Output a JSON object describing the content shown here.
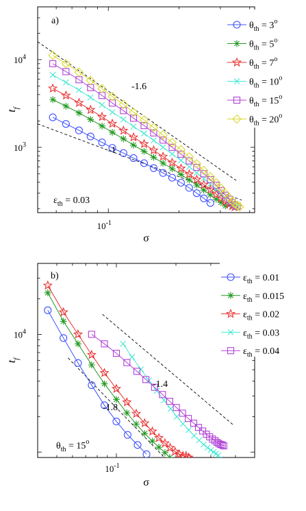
{
  "chart_data": [
    {
      "type": "line",
      "panel_label": "a)",
      "xscale": "log",
      "yscale": "log",
      "xlim": [
        0.05,
        0.42
      ],
      "ylim": [
        180,
        40000
      ],
      "xlabel": "σ",
      "ylabel": "t_f",
      "x_ticks": [
        {
          "value": 0.1,
          "base": "10",
          "exp": "-1"
        }
      ],
      "y_ticks": [
        {
          "value": 1000,
          "base": "10",
          "exp": "3"
        },
        {
          "value": 10000,
          "base": "10",
          "exp": "4"
        }
      ],
      "legend_position": "top-right",
      "annotation": {
        "symbol": "ε",
        "sub": "th",
        "text": " = 0.03"
      },
      "series": [
        {
          "sym": "θ",
          "sub": "th",
          "rest": " = 3",
          "sup": "o",
          "color": "#3c50ff",
          "marker": "circle",
          "x": [
            0.058,
            0.066,
            0.075,
            0.084,
            0.094,
            0.104,
            0.116,
            0.128,
            0.142,
            0.156,
            0.171,
            0.187,
            0.204,
            0.221,
            0.238,
            0.255,
            0.272
          ],
          "y": [
            2200,
            1850,
            1560,
            1330,
            1140,
            985,
            860,
            755,
            660,
            580,
            510,
            450,
            395,
            345,
            300,
            262,
            232
          ]
        },
        {
          "sym": "θ",
          "sub": "th",
          "rest": " = 5",
          "sup": "o",
          "color": "#229922",
          "marker": "asterisk",
          "x": [
            0.058,
            0.066,
            0.075,
            0.084,
            0.094,
            0.104,
            0.116,
            0.128,
            0.142,
            0.156,
            0.171,
            0.187,
            0.204,
            0.221,
            0.238,
            0.255,
            0.272,
            0.288,
            0.302,
            0.315
          ],
          "y": [
            3500,
            2950,
            2470,
            2080,
            1750,
            1480,
            1250,
            1060,
            900,
            770,
            660,
            570,
            490,
            425,
            370,
            325,
            287,
            256,
            235,
            215
          ]
        },
        {
          "sym": "θ",
          "sub": "th",
          "rest": " = 7",
          "sup": "o",
          "color": "#e83030",
          "marker": "star",
          "x": [
            0.058,
            0.066,
            0.075,
            0.084,
            0.094,
            0.104,
            0.116,
            0.128,
            0.142,
            0.156,
            0.171,
            0.187,
            0.204,
            0.221,
            0.238,
            0.255,
            0.272,
            0.288,
            0.302,
            0.315,
            0.327,
            0.337,
            0.345
          ],
          "y": [
            4700,
            3900,
            3220,
            2680,
            2230,
            1860,
            1550,
            1300,
            1095,
            925,
            785,
            670,
            575,
            495,
            430,
            375,
            330,
            292,
            262,
            240,
            224,
            214,
            208
          ]
        },
        {
          "sym": "θ",
          "sub": "th",
          "rest": " = 10",
          "sup": "o",
          "color": "#44e8d4",
          "marker": "x",
          "x": [
            0.058,
            0.066,
            0.075,
            0.084,
            0.094,
            0.104,
            0.116,
            0.128,
            0.142,
            0.156,
            0.171,
            0.187,
            0.204,
            0.221,
            0.238,
            0.255,
            0.272,
            0.288,
            0.302,
            0.315,
            0.327,
            0.337,
            0.346,
            0.353
          ],
          "y": [
            6700,
            5500,
            4500,
            3700,
            3050,
            2520,
            2080,
            1730,
            1440,
            1200,
            1000,
            840,
            710,
            600,
            512,
            440,
            380,
            332,
            293,
            262,
            238,
            222,
            212,
            206
          ]
        },
        {
          "sym": "θ",
          "sub": "th",
          "rest": " = 15",
          "sup": "o",
          "color": "#b040d8",
          "marker": "square",
          "x": [
            0.058,
            0.066,
            0.075,
            0.084,
            0.094,
            0.104,
            0.116,
            0.128,
            0.142,
            0.156,
            0.171,
            0.187,
            0.204,
            0.221,
            0.238,
            0.255,
            0.272,
            0.288,
            0.302,
            0.315,
            0.327,
            0.337,
            0.346,
            0.354
          ],
          "y": [
            9000,
            7300,
            5900,
            4800,
            3900,
            3200,
            2620,
            2150,
            1770,
            1460,
            1210,
            1000,
            835,
            700,
            590,
            500,
            428,
            370,
            322,
            284,
            256,
            236,
            222,
            214
          ]
        },
        {
          "sym": "θ",
          "sub": "th",
          "rest": " = 20",
          "sup": "o",
          "color": "#d8d830",
          "marker": "diamond",
          "x": [
            0.058,
            0.066,
            0.075,
            0.084,
            0.094,
            0.104,
            0.116,
            0.128,
            0.142,
            0.156,
            0.171,
            0.187,
            0.204,
            0.221,
            0.238,
            0.255,
            0.272,
            0.288,
            0.302,
            0.315,
            0.327,
            0.337,
            0.346,
            0.355,
            0.362
          ],
          "y": [
            11200,
            9000,
            7200,
            5800,
            4680,
            3800,
            3090,
            2510,
            2050,
            1680,
            1380,
            1135,
            940,
            780,
            650,
            546,
            462,
            395,
            341,
            298,
            266,
            242,
            226,
            216,
            210
          ]
        }
      ],
      "guides": [
        {
          "label": "-1.6",
          "x": [
            0.05,
            0.35
          ],
          "y": [
            16000,
            420
          ]
        },
        {
          "label": "-1",
          "x": [
            0.05,
            0.37
          ],
          "y": [
            1850,
            250
          ]
        }
      ]
    },
    {
      "type": "line",
      "panel_label": "b)",
      "xscale": "log",
      "yscale": "log",
      "xlim": [
        0.04,
        0.5
      ],
      "ylim": [
        900,
        40000
      ],
      "xlabel": "σ",
      "ylabel": "t_f",
      "x_ticks": [
        {
          "value": 0.1,
          "base": "10",
          "exp": "-1"
        }
      ],
      "y_ticks": [
        {
          "value": 10000,
          "base": "10",
          "exp": "4"
        }
      ],
      "legend_position": "top-right",
      "annotation": {
        "symbol": "θ",
        "sub": "th",
        "text": " = 15",
        "sup": "o"
      },
      "series": [
        {
          "sym": "ε",
          "sub": "th",
          "rest": " = 0.01",
          "sup": "",
          "color": "#3c50ff",
          "marker": "circle",
          "x": [
            0.045,
            0.054,
            0.064,
            0.075,
            0.087,
            0.1,
            0.114,
            0.128,
            0.142
          ],
          "y": [
            16000,
            9300,
            5700,
            3700,
            2500,
            1820,
            1400,
            1150,
            960
          ]
        },
        {
          "sym": "ε",
          "sub": "th",
          "rest": " =  0.015",
          "sup": "",
          "color": "#229922",
          "marker": "asterisk",
          "x": [
            0.045,
            0.054,
            0.064,
            0.075,
            0.087,
            0.1,
            0.113,
            0.126,
            0.139,
            0.152,
            0.164,
            0.176,
            0.186,
            0.194,
            0.2
          ],
          "y": [
            22500,
            12900,
            8300,
            5500,
            3800,
            2800,
            2150,
            1730,
            1440,
            1240,
            1100,
            990,
            900,
            840,
            780
          ]
        },
        {
          "sym": "ε",
          "sub": "th",
          "rest": " = 0.02",
          "sup": "",
          "color": "#e83030",
          "marker": "star",
          "x": [
            0.045,
            0.054,
            0.064,
            0.075,
            0.087,
            0.1,
            0.113,
            0.126,
            0.139,
            0.152,
            0.164,
            0.176,
            0.187,
            0.198,
            0.208,
            0.217,
            0.225,
            0.232,
            0.238
          ],
          "y": [
            26000,
            15400,
            10000,
            6700,
            4700,
            3450,
            2650,
            2120,
            1760,
            1500,
            1320,
            1190,
            1090,
            1010,
            960,
            930,
            930,
            900,
            860
          ]
        },
        {
          "sym": "ε",
          "sub": "th",
          "rest": " = 0.03",
          "sup": "",
          "color": "#44e8d4",
          "marker": "x",
          "x": [
            0.108,
            0.12,
            0.133,
            0.146,
            0.16,
            0.174,
            0.188,
            0.202,
            0.217,
            0.232,
            0.247,
            0.262,
            0.276,
            0.289,
            0.3,
            0.31,
            0.319,
            0.327,
            0.334
          ],
          "y": [
            8300,
            6400,
            5050,
            4060,
            3310,
            2760,
            2330,
            2000,
            1740,
            1540,
            1380,
            1260,
            1160,
            1090,
            1040,
            1000,
            970,
            940,
            870
          ]
        },
        {
          "sym": "ε",
          "sub": "th",
          "rest": " = 0.04",
          "sup": "",
          "color": "#b040d8",
          "marker": "square",
          "x": [
            0.075,
            0.087,
            0.1,
            0.113,
            0.127,
            0.141,
            0.156,
            0.171,
            0.186,
            0.201,
            0.216,
            0.231,
            0.246,
            0.26,
            0.273,
            0.285,
            0.296,
            0.306,
            0.315,
            0.323,
            0.33,
            0.337,
            0.343,
            0.349
          ],
          "y": [
            10000,
            8300,
            6900,
            5750,
            4850,
            4130,
            3550,
            3080,
            2700,
            2390,
            2140,
            1930,
            1760,
            1620,
            1510,
            1420,
            1350,
            1290,
            1250,
            1210,
            1180,
            1160,
            1150,
            1130
          ]
        }
      ],
      "guides": [
        {
          "label": "-1.4",
          "x": [
            0.085,
            0.39
          ],
          "y": [
            14800,
            1700
          ]
        },
        {
          "label": "-1.8",
          "x": [
            0.057,
            0.19
          ],
          "y": [
            6300,
            780
          ]
        }
      ]
    }
  ]
}
